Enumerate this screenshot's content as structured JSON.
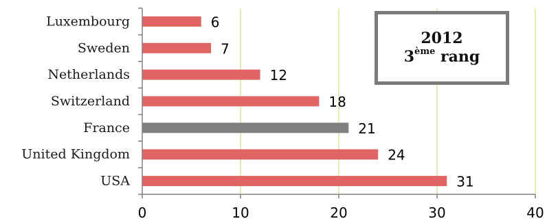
{
  "chart_data": {
    "type": "bar",
    "orientation": "horizontal",
    "categories": [
      "USA",
      "United Kingdom",
      "France",
      "Switzerland",
      "Netherlands",
      "Sweden",
      "Luxembourg"
    ],
    "values": [
      31,
      24,
      21,
      18,
      12,
      7,
      6
    ],
    "highlight_category": "France",
    "colors": {
      "bar": "#e06666",
      "highlight": "#7f7f7f",
      "grid": "#d9e6a0",
      "axis": "#808080"
    },
    "xlim": [
      0,
      40
    ],
    "xticks": [
      0,
      10,
      20,
      30,
      40
    ],
    "grid": true,
    "title": "",
    "xlabel": "",
    "ylabel": ""
  },
  "annotation": {
    "year": "2012",
    "rank_number": "3",
    "rank_suffix": "ème",
    "rank_word": "rang"
  }
}
